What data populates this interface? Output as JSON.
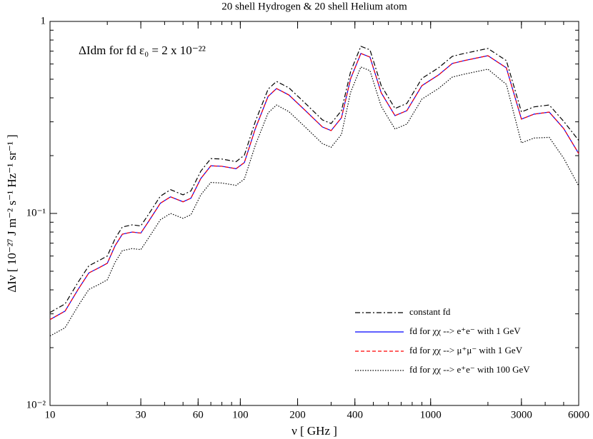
{
  "chart_data": {
    "type": "line",
    "title": "20 shell Hydrogen & 20 shell Helium atom",
    "annotation": "ΔIdm for fd ε₀ = 2 x 10⁻²²",
    "x_label": "ν [ GHz ]",
    "y_label": "ΔIν [ 10⁻²⁷ J m⁻² s⁻¹ Hz⁻¹ sr⁻¹ ]",
    "x_log": true,
    "y_log": true,
    "legend": "lower right",
    "xlim": [
      10,
      6000
    ],
    "ylim": [
      0.01,
      1
    ],
    "xticks": [
      10,
      30,
      60,
      100,
      200,
      400,
      1000,
      3000,
      6000
    ],
    "yticks": [
      {
        "value": 0.01,
        "label": "10⁻²"
      },
      {
        "value": 0.1,
        "label": "10⁻¹"
      },
      1
    ],
    "x": [
      10,
      12,
      14,
      16,
      18,
      20,
      22,
      24,
      27,
      30,
      33,
      38,
      43,
      50,
      55,
      62,
      70,
      80,
      95,
      105,
      120,
      140,
      155,
      180,
      220,
      270,
      300,
      340,
      380,
      430,
      480,
      550,
      650,
      750,
      900,
      1100,
      1300,
      1500,
      2000,
      2500,
      3000,
      3500,
      4200,
      5000,
      6000
    ],
    "series": [
      {
        "name": "constant fd",
        "color": "#000000",
        "line_style": "dashdot",
        "values": [
          0.0305,
          0.0338,
          0.0436,
          0.0534,
          0.0567,
          0.06,
          0.0741,
          0.085,
          0.0872,
          0.0861,
          0.0992,
          0.123,
          0.133,
          0.125,
          0.131,
          0.166,
          0.193,
          0.192,
          0.186,
          0.201,
          0.302,
          0.444,
          0.487,
          0.451,
          0.374,
          0.307,
          0.294,
          0.343,
          0.549,
          0.742,
          0.711,
          0.463,
          0.352,
          0.374,
          0.505,
          0.573,
          0.658,
          0.681,
          0.723,
          0.625,
          0.338,
          0.359,
          0.367,
          0.302,
          0.24
        ]
      },
      {
        "name": "fd for χχ --> e⁺e⁻ with 1 GeV",
        "color": "#0000ff",
        "line_style": "solid",
        "values": [
          0.028,
          0.031,
          0.04,
          0.049,
          0.052,
          0.055,
          0.068,
          0.078,
          0.08,
          0.079,
          0.091,
          0.113,
          0.122,
          0.115,
          0.12,
          0.152,
          0.177,
          0.176,
          0.171,
          0.184,
          0.277,
          0.407,
          0.447,
          0.414,
          0.343,
          0.282,
          0.27,
          0.315,
          0.504,
          0.681,
          0.652,
          0.425,
          0.323,
          0.343,
          0.463,
          0.526,
          0.604,
          0.625,
          0.663,
          0.573,
          0.31,
          0.329,
          0.337,
          0.277,
          0.205
        ]
      },
      {
        "name": "fd for χχ --> μ⁺μ⁻ with 1 GeV",
        "color": "#ff0000",
        "line_style": "dashed",
        "values": [
          0.028,
          0.031,
          0.04,
          0.049,
          0.052,
          0.055,
          0.068,
          0.078,
          0.08,
          0.079,
          0.091,
          0.113,
          0.122,
          0.115,
          0.12,
          0.152,
          0.177,
          0.176,
          0.171,
          0.184,
          0.277,
          0.407,
          0.447,
          0.414,
          0.343,
          0.282,
          0.27,
          0.315,
          0.504,
          0.681,
          0.652,
          0.425,
          0.323,
          0.343,
          0.463,
          0.526,
          0.604,
          0.625,
          0.663,
          0.573,
          0.31,
          0.329,
          0.337,
          0.277,
          0.205
        ]
      },
      {
        "name": "fd for χχ --> e⁺e⁻ with 100 GeV",
        "color": "#000000",
        "line_style": "dotted",
        "values": [
          0.023,
          0.0254,
          0.0328,
          0.0402,
          0.0426,
          0.0451,
          0.0558,
          0.064,
          0.0656,
          0.0648,
          0.0746,
          0.0927,
          0.1,
          0.0943,
          0.0984,
          0.125,
          0.145,
          0.144,
          0.14,
          0.151,
          0.227,
          0.334,
          0.367,
          0.339,
          0.281,
          0.231,
          0.221,
          0.258,
          0.428,
          0.579,
          0.554,
          0.361,
          0.275,
          0.292,
          0.394,
          0.447,
          0.513,
          0.531,
          0.564,
          0.47,
          0.233,
          0.247,
          0.249,
          0.194,
          0.139
        ]
      }
    ]
  }
}
